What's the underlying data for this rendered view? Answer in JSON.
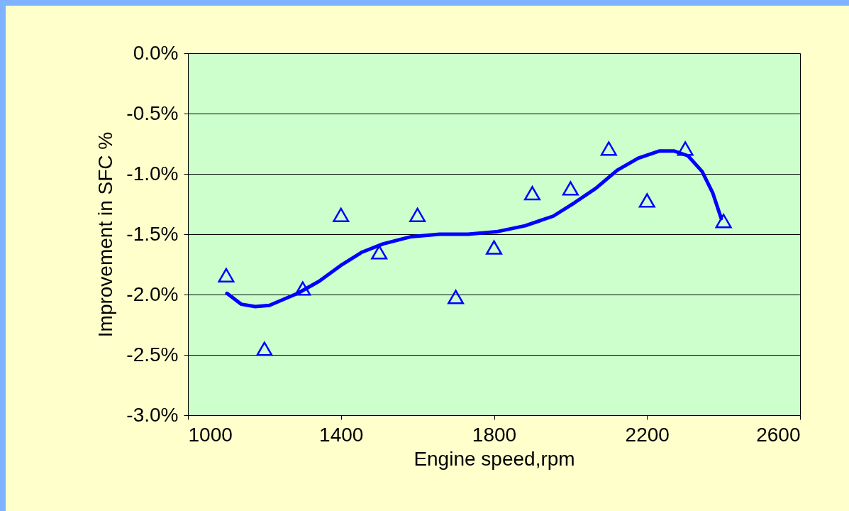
{
  "chart_data": {
    "type": "scatter",
    "xlabel": "Engine speed,rpm",
    "ylabel": "Improvement in SFC %",
    "series": [
      {
        "color": "#0000ff",
        "marker": "triangle",
        "x": [
          1100,
          1200,
          1300,
          1400,
          1500,
          1600,
          1700,
          1800,
          1900,
          2000,
          2100,
          2200,
          2300,
          2400
        ],
        "values": [
          -1.84,
          -2.45,
          -1.95,
          -1.34,
          -1.65,
          -1.34,
          -2.02,
          -1.61,
          -1.16,
          -1.12,
          -0.79,
          -1.22,
          -0.79,
          -1.39
        ]
      },
      {
        "type": "line",
        "color": "#0000ff",
        "marker": "none",
        "line_style": "solid",
        "x": [
          1102,
          1139,
          1176,
          1213,
          1287,
          1343,
          1399,
          1454,
          1510,
          1584,
          1658,
          1732,
          1806,
          1881,
          1955,
          2010,
          2066,
          2122,
          2177,
          2233,
          2270,
          2307,
          2344,
          2372,
          2394
        ],
        "values": [
          -1.99,
          -2.08,
          -2.1,
          -2.09,
          -1.99,
          -1.89,
          -1.76,
          -1.65,
          -1.58,
          -1.52,
          -1.5,
          -1.5,
          -1.48,
          -1.43,
          -1.35,
          -1.24,
          -1.12,
          -0.97,
          -0.87,
          -0.81,
          -0.81,
          -0.85,
          -0.98,
          -1.16,
          -1.37
        ]
      }
    ],
    "xlim": [
      1000,
      2600
    ],
    "xticks": [
      1000,
      1400,
      1800,
      2200,
      2600
    ],
    "ylim": [
      -3,
      0
    ],
    "yticks": [
      {
        "value": -3,
        "label": "-3.0%"
      },
      {
        "value": -2.5,
        "label": "-2.5%"
      },
      {
        "value": -2,
        "label": "-2.0%"
      },
      {
        "value": -1.5,
        "label": "-1.5%"
      },
      {
        "value": -1,
        "label": "-1.0%"
      },
      {
        "value": -0.5,
        "label": "-0.5%"
      },
      {
        "value": 0,
        "label": "0.0%"
      }
    ],
    "grid": "y"
  }
}
